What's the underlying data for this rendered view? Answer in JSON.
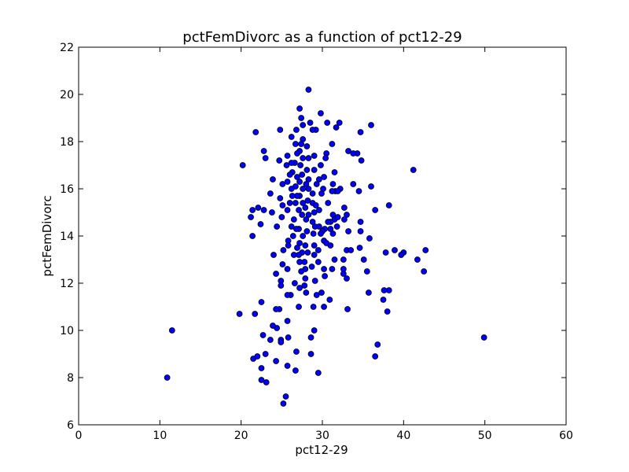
{
  "chart_data": {
    "type": "scatter",
    "title": "pctFemDivorc as a function of pct12-29",
    "xlabel": "pct12-29",
    "ylabel": "pctFemDivorc",
    "xlim": [
      0,
      60
    ],
    "ylim": [
      6,
      22
    ],
    "xticks": [
      "0",
      "10",
      "20",
      "30",
      "40",
      "50",
      "60"
    ],
    "yticks": [
      "6",
      "8",
      "10",
      "12",
      "14",
      "16",
      "18",
      "20",
      "22"
    ],
    "grid": false,
    "marker_color": "#0000ff",
    "series": [
      {
        "points": [
          [
            10.9,
            8.0
          ],
          [
            11.5,
            10.0
          ],
          [
            49.9,
            9.7
          ],
          [
            41.2,
            16.8
          ],
          [
            42.7,
            13.4
          ],
          [
            42.5,
            12.5
          ],
          [
            41.7,
            13.0
          ],
          [
            40.0,
            13.3
          ],
          [
            39.7,
            13.2
          ],
          [
            38.9,
            13.4
          ],
          [
            37.8,
            13.3
          ],
          [
            38.2,
            11.7
          ],
          [
            37.6,
            11.7
          ],
          [
            37.5,
            11.3
          ],
          [
            38.0,
            10.8
          ],
          [
            36.8,
            9.4
          ],
          [
            36.5,
            8.9
          ],
          [
            36.5,
            15.1
          ],
          [
            38.2,
            15.3
          ],
          [
            36.0,
            18.7
          ],
          [
            36.0,
            16.1
          ],
          [
            35.8,
            13.9
          ],
          [
            35.7,
            11.6
          ],
          [
            35.5,
            12.5
          ],
          [
            35.1,
            13.0
          ],
          [
            34.6,
            13.5
          ],
          [
            34.7,
            14.2
          ],
          [
            34.7,
            14.6
          ],
          [
            34.5,
            15.9
          ],
          [
            34.8,
            17.2
          ],
          [
            34.3,
            17.5
          ],
          [
            34.7,
            18.4
          ],
          [
            33.8,
            17.5
          ],
          [
            33.2,
            17.6
          ],
          [
            33.8,
            16.2
          ],
          [
            33.0,
            14.9
          ],
          [
            33.2,
            14.2
          ],
          [
            33.0,
            13.4
          ],
          [
            33.5,
            13.4
          ],
          [
            33.0,
            12.2
          ],
          [
            33.1,
            10.9
          ],
          [
            32.6,
            12.4
          ],
          [
            32.6,
            12.6
          ],
          [
            32.6,
            13.0
          ],
          [
            32.7,
            14.7
          ],
          [
            32.7,
            15.2
          ],
          [
            32.2,
            16.0
          ],
          [
            32.1,
            18.8
          ],
          [
            31.7,
            18.6
          ],
          [
            31.2,
            17.9
          ],
          [
            31.5,
            16.7
          ],
          [
            31.3,
            16.2
          ],
          [
            31.6,
            15.9
          ],
          [
            31.2,
            15.9
          ],
          [
            31.3,
            14.9
          ],
          [
            31.5,
            14.7
          ],
          [
            31.0,
            14.6
          ],
          [
            31.0,
            14.3
          ],
          [
            31.3,
            14.1
          ],
          [
            31.0,
            13.6
          ],
          [
            31.5,
            13.0
          ],
          [
            31.2,
            12.6
          ],
          [
            30.9,
            11.3
          ],
          [
            31.9,
            15.9
          ],
          [
            31.9,
            14.8
          ],
          [
            31.8,
            14.4
          ],
          [
            30.6,
            18.8
          ],
          [
            30.5,
            17.5
          ],
          [
            30.4,
            17.3
          ],
          [
            30.2,
            16.5
          ],
          [
            30.1,
            16.0
          ],
          [
            30.7,
            15.4
          ],
          [
            30.7,
            14.6
          ],
          [
            30.3,
            14.3
          ],
          [
            30.0,
            14.2
          ],
          [
            30.2,
            13.8
          ],
          [
            30.5,
            13.7
          ],
          [
            30.2,
            12.6
          ],
          [
            30.3,
            12.3
          ],
          [
            30.2,
            11.0
          ],
          [
            29.8,
            19.2
          ],
          [
            29.8,
            17.0
          ],
          [
            29.6,
            16.4
          ],
          [
            29.9,
            15.8
          ],
          [
            29.6,
            15.1
          ],
          [
            29.6,
            14.4
          ],
          [
            29.8,
            14.1
          ],
          [
            29.5,
            13.4
          ],
          [
            29.5,
            12.9
          ],
          [
            29.9,
            11.6
          ],
          [
            29.5,
            8.2
          ],
          [
            29.2,
            18.5
          ],
          [
            28.8,
            18.5
          ],
          [
            29.0,
            17.4
          ],
          [
            29.0,
            16.8
          ],
          [
            29.3,
            16.2
          ],
          [
            28.8,
            15.8
          ],
          [
            28.8,
            15.4
          ],
          [
            29.2,
            15.3
          ],
          [
            29.0,
            15.0
          ],
          [
            28.8,
            14.6
          ],
          [
            29.1,
            14.4
          ],
          [
            28.9,
            14.1
          ],
          [
            29.0,
            13.6
          ],
          [
            29.0,
            13.2
          ],
          [
            28.7,
            12.7
          ],
          [
            29.1,
            12.1
          ],
          [
            29.3,
            11.5
          ],
          [
            28.9,
            11.0
          ],
          [
            29.0,
            10.0
          ],
          [
            28.6,
            9.7
          ],
          [
            28.6,
            9.0
          ],
          [
            28.3,
            20.2
          ],
          [
            28.5,
            18.8
          ],
          [
            28.1,
            17.8
          ],
          [
            28.3,
            17.3
          ],
          [
            28.1,
            16.8
          ],
          [
            28.3,
            16.4
          ],
          [
            28.0,
            16.2
          ],
          [
            28.3,
            16.0
          ],
          [
            28.2,
            15.5
          ],
          [
            27.9,
            15.2
          ],
          [
            28.3,
            14.9
          ],
          [
            28.0,
            14.7
          ],
          [
            28.1,
            14.2
          ],
          [
            27.9,
            13.6
          ],
          [
            28.2,
            13.3
          ],
          [
            27.8,
            12.9
          ],
          [
            27.9,
            12.6
          ],
          [
            27.9,
            12.2
          ],
          [
            27.8,
            11.9
          ],
          [
            28.0,
            11.6
          ],
          [
            27.4,
            19.0
          ],
          [
            27.6,
            18.7
          ],
          [
            27.2,
            19.4
          ],
          [
            27.6,
            18.1
          ],
          [
            27.4,
            17.9
          ],
          [
            27.2,
            17.6
          ],
          [
            27.6,
            17.3
          ],
          [
            27.3,
            17.0
          ],
          [
            27.5,
            16.6
          ],
          [
            27.2,
            16.3
          ],
          [
            27.6,
            16.0
          ],
          [
            27.2,
            15.7
          ],
          [
            27.6,
            15.4
          ],
          [
            27.1,
            15.1
          ],
          [
            27.5,
            14.9
          ],
          [
            27.1,
            14.3
          ],
          [
            27.6,
            14.0
          ],
          [
            27.2,
            13.7
          ],
          [
            27.5,
            13.3
          ],
          [
            27.1,
            13.2
          ],
          [
            27.2,
            12.9
          ],
          [
            27.4,
            12.5
          ],
          [
            27.2,
            11.8
          ],
          [
            27.1,
            11.0
          ],
          [
            26.8,
            18.5
          ],
          [
            26.7,
            17.9
          ],
          [
            26.9,
            17.5
          ],
          [
            26.6,
            17.1
          ],
          [
            26.9,
            16.5
          ],
          [
            26.7,
            16.1
          ],
          [
            26.9,
            15.7
          ],
          [
            26.7,
            15.4
          ],
          [
            26.5,
            14.7
          ],
          [
            26.8,
            14.3
          ],
          [
            26.4,
            14.0
          ],
          [
            26.9,
            13.5
          ],
          [
            26.5,
            13.2
          ],
          [
            26.6,
            12.0
          ],
          [
            26.8,
            9.1
          ],
          [
            26.7,
            8.3
          ],
          [
            26.2,
            18.2
          ],
          [
            26.2,
            17.1
          ],
          [
            26.3,
            16.7
          ],
          [
            26.0,
            16.6
          ],
          [
            26.2,
            16.0
          ],
          [
            26.3,
            15.7
          ],
          [
            26.0,
            15.4
          ],
          [
            26.2,
            14.4
          ],
          [
            26.1,
            11.5
          ],
          [
            25.7,
            17.4
          ],
          [
            25.6,
            17.0
          ],
          [
            25.7,
            16.3
          ],
          [
            25.7,
            15.1
          ],
          [
            25.8,
            13.8
          ],
          [
            25.8,
            13.6
          ],
          [
            25.7,
            12.6
          ],
          [
            25.7,
            11.5
          ],
          [
            25.7,
            10.4
          ],
          [
            25.8,
            9.7
          ],
          [
            25.7,
            8.5
          ],
          [
            25.5,
            7.2
          ],
          [
            25.1,
            16.2
          ],
          [
            25.1,
            15.3
          ],
          [
            25.0,
            14.8
          ],
          [
            25.2,
            13.4
          ],
          [
            25.1,
            12.8
          ],
          [
            24.8,
            18.5
          ],
          [
            24.7,
            17.2
          ],
          [
            24.8,
            15.6
          ],
          [
            24.9,
            12.1
          ],
          [
            24.9,
            11.9
          ],
          [
            24.7,
            10.9
          ],
          [
            24.9,
            9.6
          ],
          [
            24.9,
            9.5
          ],
          [
            25.2,
            6.9
          ],
          [
            24.4,
            14.4
          ],
          [
            24.3,
            12.4
          ],
          [
            24.3,
            10.9
          ],
          [
            24.4,
            10.1
          ],
          [
            24.3,
            8.7
          ],
          [
            23.9,
            16.4
          ],
          [
            23.6,
            15.8
          ],
          [
            23.8,
            15.0
          ],
          [
            24.0,
            13.2
          ],
          [
            23.9,
            10.2
          ],
          [
            23.6,
            9.6
          ],
          [
            22.8,
            17.6
          ],
          [
            23.0,
            17.3
          ],
          [
            22.8,
            15.1
          ],
          [
            22.5,
            11.2
          ],
          [
            22.7,
            9.8
          ],
          [
            22.5,
            8.4
          ],
          [
            22.5,
            7.9
          ],
          [
            23.1,
            7.8
          ],
          [
            23.0,
            9.0
          ],
          [
            22.4,
            14.5
          ],
          [
            22.1,
            15.2
          ],
          [
            21.8,
            18.4
          ],
          [
            21.4,
            15.1
          ],
          [
            21.2,
            14.8
          ],
          [
            21.4,
            14.0
          ],
          [
            21.7,
            10.7
          ],
          [
            21.5,
            8.8
          ],
          [
            22.0,
            8.9
          ],
          [
            19.8,
            10.7
          ],
          [
            20.2,
            17.0
          ]
        ]
      }
    ]
  }
}
